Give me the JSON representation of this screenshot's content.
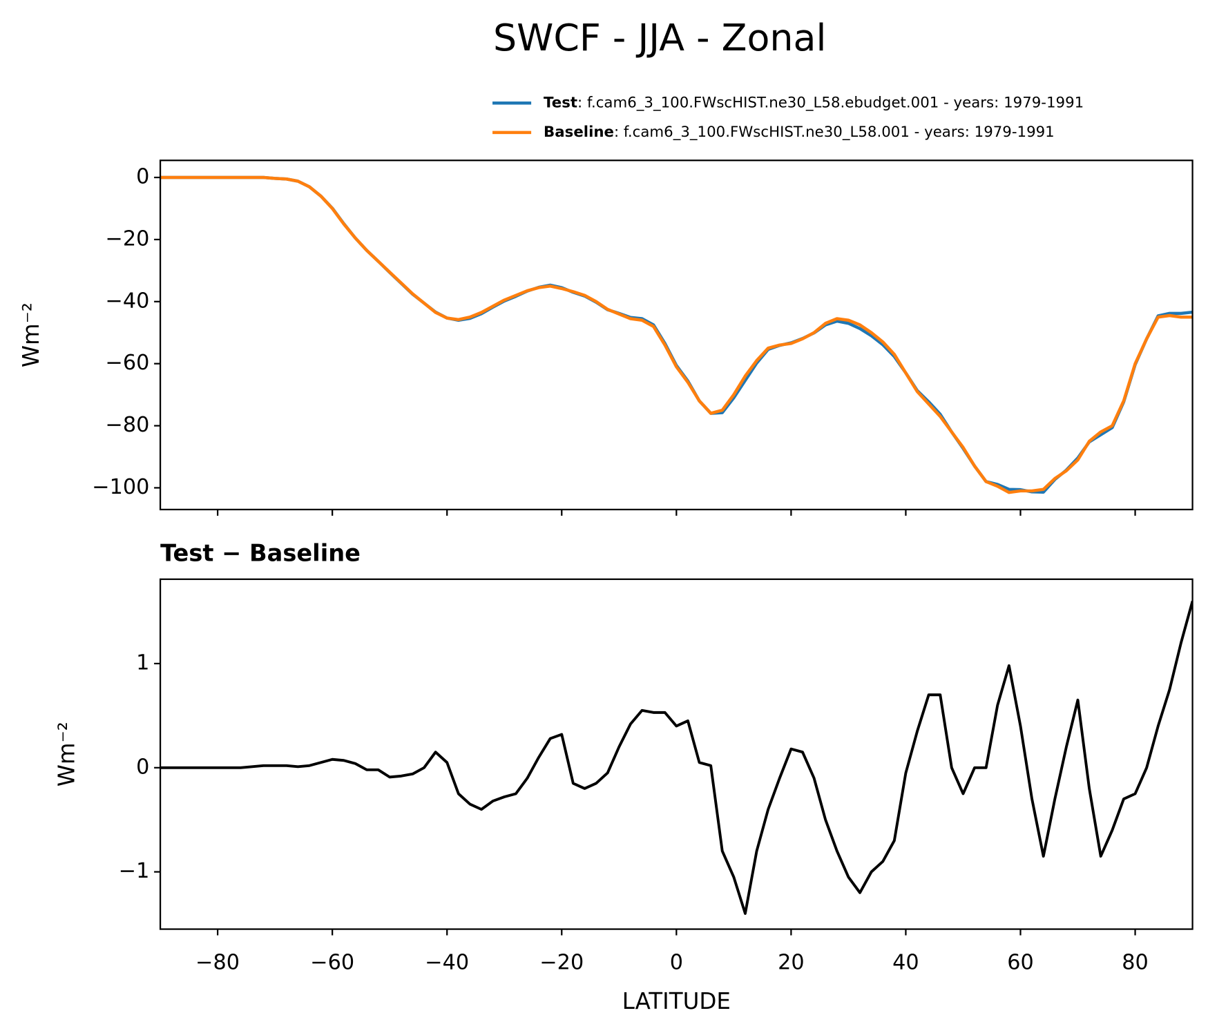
{
  "chart_data": [
    {
      "type": "line",
      "title": "SWCF - JJA - Zonal",
      "ylabel": "Wm⁻²",
      "x": [
        -90,
        -88,
        -86,
        -84,
        -82,
        -80,
        -78,
        -76,
        -74,
        -72,
        -70,
        -68,
        -66,
        -64,
        -62,
        -60,
        -58,
        -56,
        -54,
        -52,
        -50,
        -48,
        -46,
        -44,
        -42,
        -40,
        -38,
        -36,
        -34,
        -32,
        -30,
        -28,
        -26,
        -24,
        -22,
        -20,
        -18,
        -16,
        -14,
        -12,
        -10,
        -8,
        -6,
        -4,
        -2,
        0,
        2,
        4,
        6,
        8,
        10,
        12,
        14,
        16,
        18,
        20,
        22,
        24,
        26,
        28,
        30,
        32,
        34,
        36,
        38,
        40,
        42,
        44,
        46,
        48,
        50,
        52,
        54,
        56,
        58,
        60,
        62,
        64,
        66,
        68,
        70,
        72,
        74,
        76,
        78,
        80,
        82,
        84,
        86,
        88,
        90
      ],
      "series": [
        {
          "name": "Test",
          "label": ": f.cam6_3_100.FWscHIST.ne30_L58.ebudget.001 - years: 1979-1991",
          "color": "#1f77b4",
          "values": [
            0,
            0,
            0,
            0,
            0,
            0,
            0,
            0,
            0,
            0,
            -0.3,
            -0.5,
            -1.2,
            -3,
            -6,
            -9.9,
            -14.9,
            -19.5,
            -23.5,
            -27,
            -30.6,
            -34.1,
            -37.6,
            -40.5,
            -43.4,
            -45.3,
            -46,
            -45.4,
            -43.9,
            -41.8,
            -39.8,
            -38.3,
            -36.6,
            -35.4,
            -34.7,
            -35.5,
            -37,
            -38.2,
            -40.2,
            -42.6,
            -43.8,
            -45.1,
            -45.5,
            -47.5,
            -53.5,
            -60.6,
            -65.6,
            -72,
            -76,
            -75.8,
            -71,
            -65.4,
            -59.8,
            -55.4,
            -54.1,
            -53.3,
            -51.9,
            -50.1,
            -47.5,
            -46.3,
            -47,
            -48.7,
            -51,
            -53.9,
            -57.7,
            -63,
            -68.7,
            -72.3,
            -76.3,
            -82,
            -87.3,
            -93,
            -98,
            -98.9,
            -100.5,
            -100.6,
            -101.3,
            -101.4,
            -97.3,
            -94.3,
            -90.4,
            -85.2,
            -82.9,
            -80.6,
            -72.3,
            -60.3,
            -52,
            -44.6,
            -43.8,
            -43.8,
            -43.4
          ]
        },
        {
          "name": "Baseline",
          "label": ": f.cam6_3_100.FWscHIST.ne30_L58.001 - years: 1979-1991",
          "color": "#ff7f0e",
          "values": [
            0,
            0,
            0,
            0,
            0,
            0,
            0,
            0,
            0,
            0,
            -0.3,
            -0.5,
            -1.2,
            -3,
            -6,
            -10,
            -15,
            -19.5,
            -23.5,
            -27,
            -30.5,
            -34,
            -37.5,
            -40.5,
            -43.5,
            -45.3,
            -45.8,
            -45,
            -43.5,
            -41.5,
            -39.5,
            -38,
            -36.5,
            -35.5,
            -35,
            -35.8,
            -36.8,
            -38,
            -40,
            -42.5,
            -44,
            -45.5,
            -46,
            -48,
            -54,
            -61,
            -66,
            -72,
            -76,
            -75,
            -70,
            -64,
            -59,
            -55,
            -54,
            -53.5,
            -52,
            -50,
            -47,
            -45.5,
            -46,
            -47.5,
            -50,
            -53,
            -57,
            -63,
            -69,
            -73,
            -77,
            -82,
            -87,
            -93,
            -98,
            -99.5,
            -101.5,
            -101,
            -101,
            -100.5,
            -97,
            -94.5,
            -91,
            -85,
            -82,
            -80,
            -72,
            -60,
            -52,
            -45,
            -44.5,
            -45,
            -45
          ]
        }
      ],
      "xlim": [
        -90,
        90
      ],
      "xticks": [
        {
          "value": -80,
          "label": "−80"
        },
        {
          "value": -60,
          "label": "−60"
        },
        {
          "value": -40,
          "label": "−40"
        },
        {
          "value": -20,
          "label": "−20"
        },
        0,
        20,
        40,
        60,
        80
      ],
      "ylim": [
        -107,
        5.5
      ],
      "yticks": [
        {
          "value": -100,
          "label": "−100"
        },
        {
          "value": -80,
          "label": "−80"
        },
        {
          "value": -60,
          "label": "−60"
        },
        {
          "value": -40,
          "label": "−40"
        },
        {
          "value": -20,
          "label": "−20"
        },
        0
      ]
    },
    {
      "type": "line",
      "title": "Test − Baseline",
      "ylabel": "Wm⁻²",
      "xlabel": "LATITUDE",
      "x": [
        -90,
        -88,
        -86,
        -84,
        -82,
        -80,
        -78,
        -76,
        -74,
        -72,
        -70,
        -68,
        -66,
        -64,
        -62,
        -60,
        -58,
        -56,
        -54,
        -52,
        -50,
        -48,
        -46,
        -44,
        -42,
        -40,
        -38,
        -36,
        -34,
        -32,
        -30,
        -28,
        -26,
        -24,
        -22,
        -20,
        -18,
        -16,
        -14,
        -12,
        -10,
        -8,
        -6,
        -4,
        -2,
        0,
        2,
        4,
        6,
        8,
        10,
        12,
        14,
        16,
        18,
        20,
        22,
        24,
        26,
        28,
        30,
        32,
        34,
        36,
        38,
        40,
        42,
        44,
        46,
        48,
        50,
        52,
        54,
        56,
        58,
        60,
        62,
        64,
        66,
        68,
        70,
        72,
        74,
        76,
        78,
        80,
        82,
        84,
        86,
        88,
        90
      ],
      "series": [
        {
          "color": "#000000",
          "values": [
            0,
            0,
            0,
            0,
            0,
            0,
            0,
            0,
            0.01,
            0.02,
            0.02,
            0.02,
            0.01,
            0.02,
            0.05,
            0.08,
            0.07,
            0.04,
            -0.02,
            -0.02,
            -0.09,
            -0.08,
            -0.06,
            0,
            0.15,
            0.05,
            -0.25,
            -0.35,
            -0.4,
            -0.32,
            -0.28,
            -0.25,
            -0.1,
            0.1,
            0.28,
            0.32,
            -0.15,
            -0.2,
            -0.15,
            -0.05,
            0.2,
            0.42,
            0.55,
            0.53,
            0.53,
            0.4,
            0.45,
            0.05,
            0.02,
            -0.8,
            -1.05,
            -1.4,
            -0.8,
            -0.4,
            -0.1,
            0.18,
            0.15,
            -0.1,
            -0.5,
            -0.8,
            -1.05,
            -1.2,
            -1,
            -0.9,
            -0.7,
            -0.05,
            0.35,
            0.7,
            0.7,
            0,
            -0.25,
            0,
            0,
            0.6,
            0.98,
            0.4,
            -0.3,
            -0.85,
            -0.3,
            0.2,
            0.65,
            -0.2,
            -0.85,
            -0.6,
            -0.3,
            -0.25,
            0,
            0.4,
            0.75,
            1.2,
            1.6
          ]
        }
      ],
      "xlim": [
        -90,
        90
      ],
      "xticks": [
        {
          "value": -80,
          "label": "−80"
        },
        {
          "value": -60,
          "label": "−60"
        },
        {
          "value": -40,
          "label": "−40"
        },
        {
          "value": -20,
          "label": "−20"
        },
        0,
        20,
        40,
        60,
        80
      ],
      "ylim": [
        -1.55,
        1.81
      ],
      "yticks": [
        {
          "value": -1,
          "label": "−1"
        },
        0,
        1
      ]
    }
  ]
}
